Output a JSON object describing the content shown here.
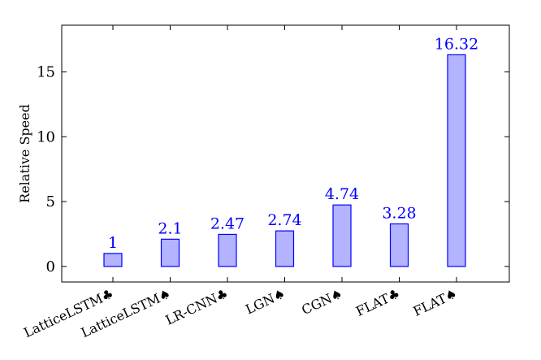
{
  "chart_data": {
    "type": "bar",
    "title": "",
    "xlabel": "",
    "ylabel": "Relative Speed",
    "ylim": [
      -1.2,
      18.6
    ],
    "yticks": [
      0,
      5,
      10,
      15
    ],
    "ytick_labels": [
      "0",
      "5",
      "10",
      "15"
    ],
    "categories": [
      "LatticeLSTM♣",
      "LatticeLSTM♠",
      "LR-CNN♣",
      "LGN♠",
      "CGN♠",
      "FLAT♣",
      "FLAT♠"
    ],
    "values": [
      1,
      2.1,
      2.47,
      2.74,
      4.74,
      3.28,
      16.32
    ],
    "value_labels": [
      "1",
      "2.1",
      "2.47",
      "2.74",
      "4.74",
      "3.28",
      "16.32"
    ],
    "grid": false,
    "colors": {
      "bar_fill": "#b3b3ff",
      "bar_stroke": "#0000ff",
      "label": "#0000ff",
      "axis": "#000000"
    }
  }
}
